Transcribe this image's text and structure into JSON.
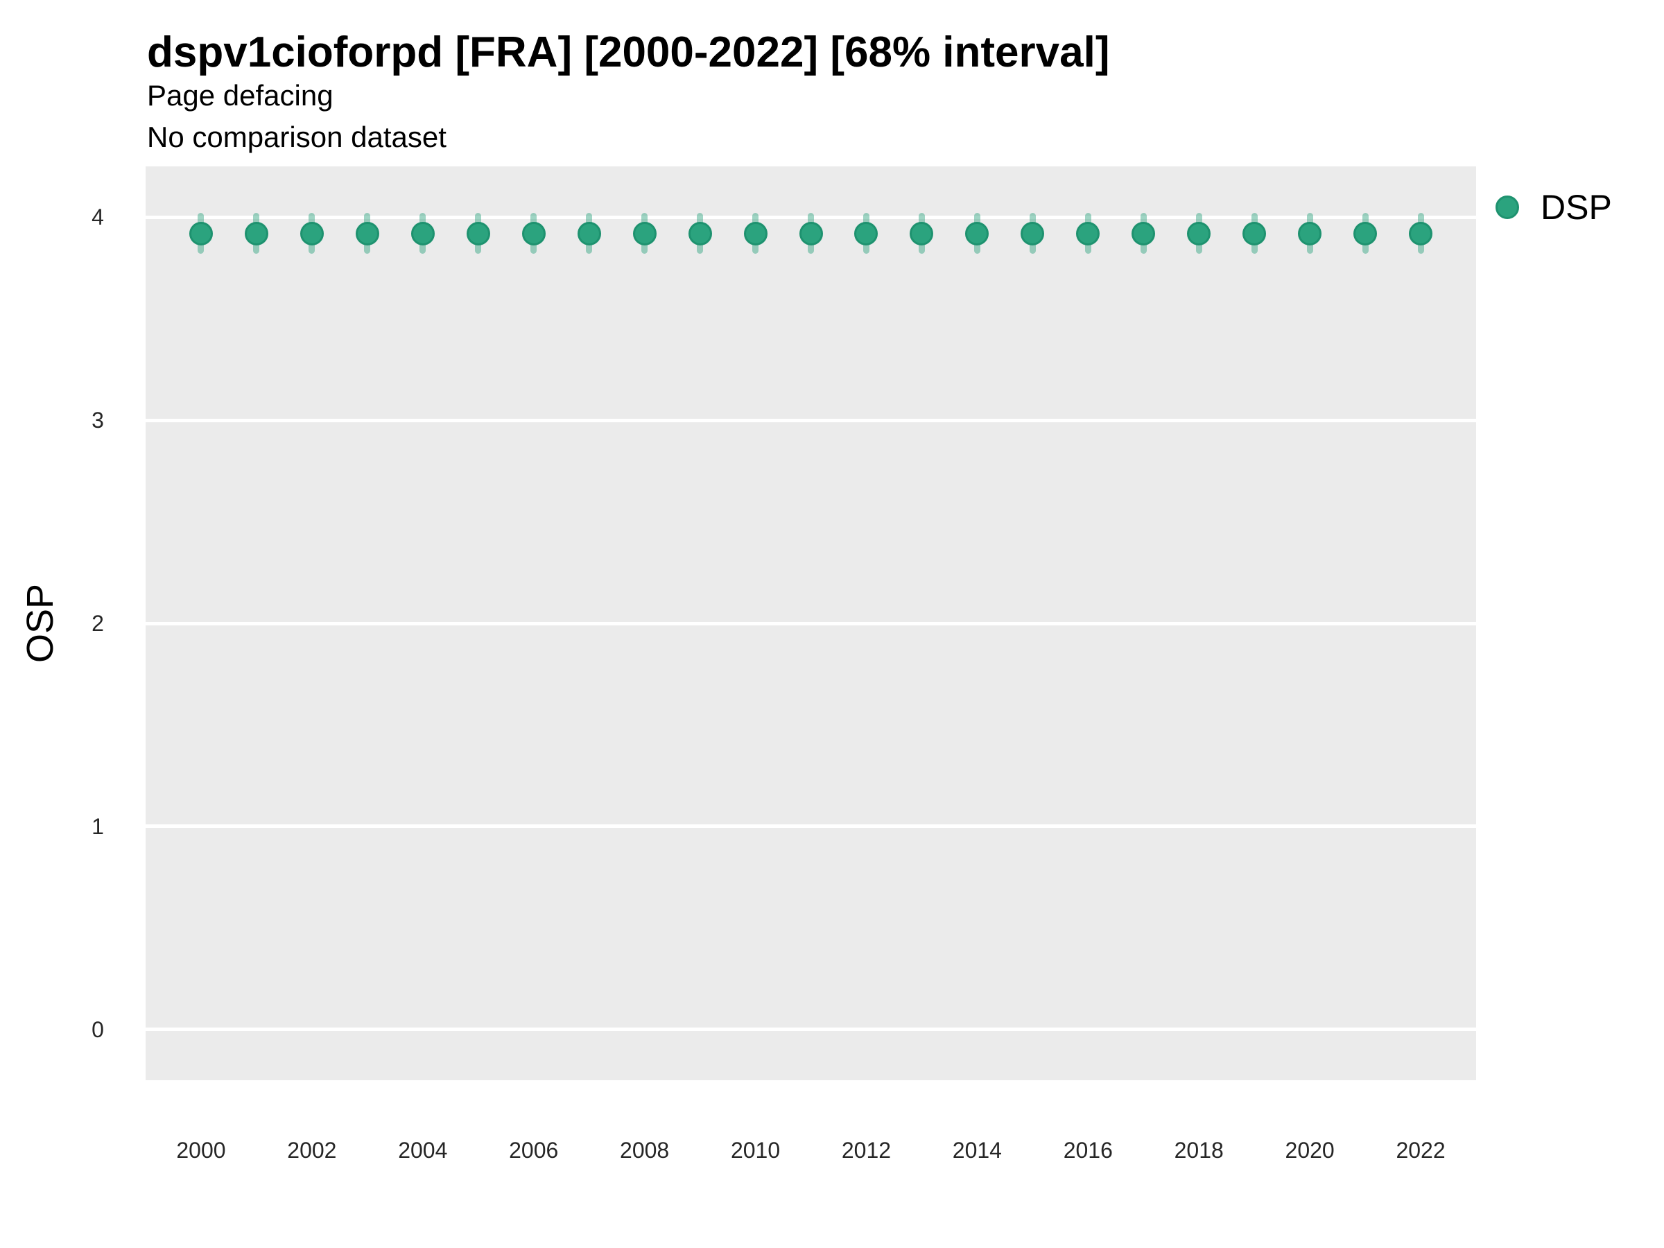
{
  "chart_data": {
    "type": "scatter",
    "title": "dspv1cioforpd [FRA] [2000-2022] [68% interval]",
    "subtitles": [
      "Page defacing",
      "No comparison dataset"
    ],
    "xlabel": "",
    "ylabel": "OSP",
    "interval_label": "68% interval",
    "legend": {
      "position": "right-top",
      "entries": [
        {
          "label": "DSP",
          "marker": "circle",
          "color": "#2BA37E",
          "edge_color": "#1E926F"
        }
      ]
    },
    "x_ticks": [
      2000,
      2002,
      2004,
      2006,
      2008,
      2010,
      2012,
      2014,
      2016,
      2018,
      2020,
      2022
    ],
    "y_ticks": [
      0,
      1,
      2,
      3,
      4
    ],
    "xlim": [
      1999,
      2023
    ],
    "ylim": [
      -0.25,
      4.25
    ],
    "grid": {
      "horizontal": true,
      "vertical": false,
      "color": "#FFFFFF"
    },
    "panel_background": "#EBEBEB",
    "series": [
      {
        "name": "DSP",
        "color": "#2BA37E",
        "edge_color": "#1E926F",
        "interval_color": "rgba(42,162,125,0.45)",
        "points": [
          {
            "x": 2000,
            "y": 3.92,
            "lo": 3.82,
            "hi": 4.02
          },
          {
            "x": 2001,
            "y": 3.92,
            "lo": 3.82,
            "hi": 4.02
          },
          {
            "x": 2002,
            "y": 3.92,
            "lo": 3.82,
            "hi": 4.02
          },
          {
            "x": 2003,
            "y": 3.92,
            "lo": 3.82,
            "hi": 4.02
          },
          {
            "x": 2004,
            "y": 3.92,
            "lo": 3.82,
            "hi": 4.02
          },
          {
            "x": 2005,
            "y": 3.92,
            "lo": 3.82,
            "hi": 4.02
          },
          {
            "x": 2006,
            "y": 3.92,
            "lo": 3.82,
            "hi": 4.02
          },
          {
            "x": 2007,
            "y": 3.92,
            "lo": 3.82,
            "hi": 4.02
          },
          {
            "x": 2008,
            "y": 3.92,
            "lo": 3.82,
            "hi": 4.02
          },
          {
            "x": 2009,
            "y": 3.92,
            "lo": 3.82,
            "hi": 4.02
          },
          {
            "x": 2010,
            "y": 3.92,
            "lo": 3.82,
            "hi": 4.02
          },
          {
            "x": 2011,
            "y": 3.92,
            "lo": 3.82,
            "hi": 4.02
          },
          {
            "x": 2012,
            "y": 3.92,
            "lo": 3.82,
            "hi": 4.02
          },
          {
            "x": 2013,
            "y": 3.92,
            "lo": 3.82,
            "hi": 4.02
          },
          {
            "x": 2014,
            "y": 3.92,
            "lo": 3.82,
            "hi": 4.02
          },
          {
            "x": 2015,
            "y": 3.92,
            "lo": 3.82,
            "hi": 4.02
          },
          {
            "x": 2016,
            "y": 3.92,
            "lo": 3.82,
            "hi": 4.02
          },
          {
            "x": 2017,
            "y": 3.92,
            "lo": 3.82,
            "hi": 4.02
          },
          {
            "x": 2018,
            "y": 3.92,
            "lo": 3.82,
            "hi": 4.02
          },
          {
            "x": 2019,
            "y": 3.92,
            "lo": 3.82,
            "hi": 4.02
          },
          {
            "x": 2020,
            "y": 3.92,
            "lo": 3.82,
            "hi": 4.02
          },
          {
            "x": 2021,
            "y": 3.92,
            "lo": 3.82,
            "hi": 4.02
          },
          {
            "x": 2022,
            "y": 3.92,
            "lo": 3.82,
            "hi": 4.02
          }
        ]
      }
    ]
  }
}
